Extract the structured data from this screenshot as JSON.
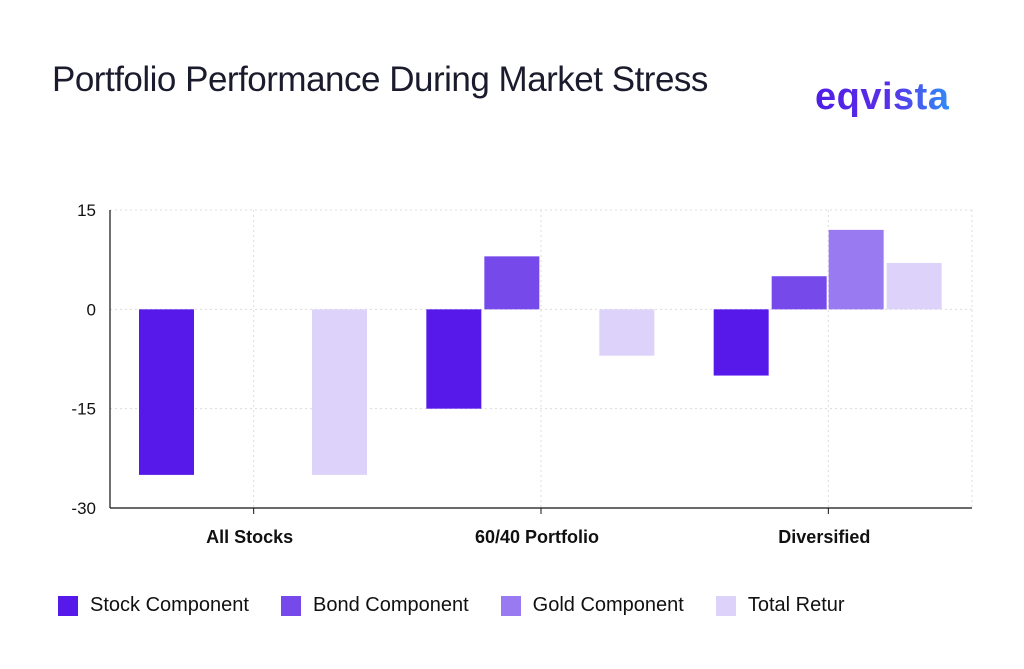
{
  "title": "Portfolio Performance During Market Stress",
  "logo": "eqvista",
  "chart_data": {
    "type": "bar",
    "title": "Portfolio Performance During Market Stress",
    "categories": [
      "All Stocks",
      "60/40 Portfolio",
      "Diversified"
    ],
    "series": [
      {
        "name": "Stock Component",
        "values": [
          -25,
          -15,
          -10
        ],
        "color": "#5718EA"
      },
      {
        "name": "Bond Component",
        "values": [
          0,
          8,
          5
        ],
        "color": "#7649EB"
      },
      {
        "name": "Gold Component",
        "values": [
          0,
          0,
          12
        ],
        "color": "#9A7AF0"
      },
      {
        "name": "Total Retur",
        "values": [
          -25,
          -7,
          7
        ],
        "color": "#DDD2FA"
      }
    ],
    "ylim": [
      -30,
      15
    ],
    "yticks": [
      "15",
      "0",
      "-15",
      "-30"
    ],
    "grid": true,
    "legend": "bottom",
    "xlabel": "",
    "ylabel": ""
  }
}
